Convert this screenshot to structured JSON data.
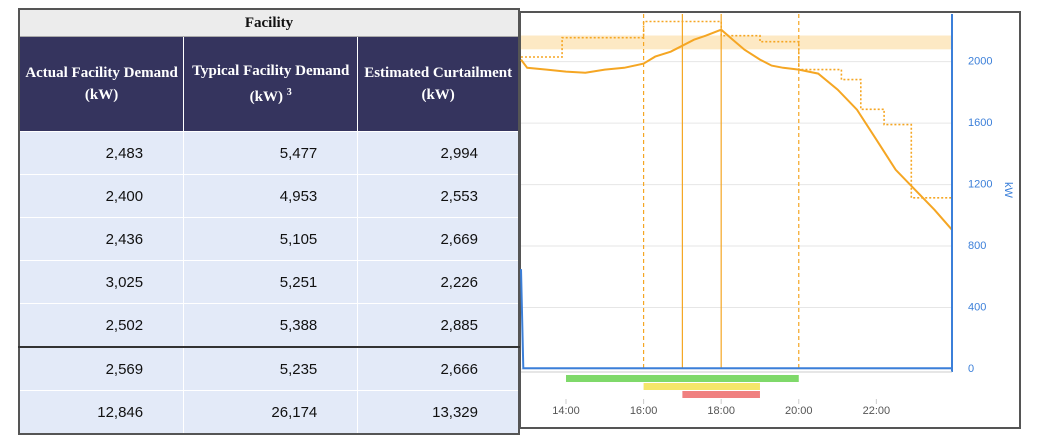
{
  "table": {
    "title": "Facility",
    "headers": [
      "Actual Facility Demand (kW)",
      "Typical Facility Demand (kW)",
      "Estimated Curtailment (kW)"
    ],
    "header_note": "3",
    "rows": [
      [
        "2,483",
        "5,477",
        "2,994"
      ],
      [
        "2,400",
        "4,953",
        "2,553"
      ],
      [
        "2,436",
        "5,105",
        "2,669"
      ],
      [
        "3,025",
        "5,251",
        "2,226"
      ],
      [
        "2,502",
        "5,388",
        "2,885"
      ],
      [
        "2,569",
        "5,235",
        "2,666"
      ],
      [
        "12,846",
        "26,174",
        "13,329"
      ]
    ]
  },
  "chart_data": {
    "type": "line",
    "ylabel": "kW",
    "y_axis_position": "right",
    "xlim": [
      12.84,
      23.95
    ],
    "ylim": [
      0,
      2310
    ],
    "xticks": [
      {
        "value": 14,
        "label": "14:00"
      },
      {
        "value": 16,
        "label": "16:00"
      },
      {
        "value": 18,
        "label": "18:00"
      },
      {
        "value": 20,
        "label": "20:00"
      },
      {
        "value": 22,
        "label": "22:00"
      }
    ],
    "yticks": [
      0,
      400,
      800,
      1200,
      1600,
      2000
    ],
    "grid": true,
    "bands": [
      {
        "from": 2080,
        "to": 2170,
        "color": "#fde9c4"
      }
    ],
    "vlines": [
      {
        "x": 16,
        "style": "dashed",
        "color": "#f5a623"
      },
      {
        "x": 17,
        "style": "solid",
        "color": "#f5a623"
      },
      {
        "x": 18,
        "style": "solid",
        "color": "#f5a623"
      },
      {
        "x": 20,
        "style": "dashed",
        "color": "#f5a623"
      }
    ],
    "ranges": [
      {
        "start": 14,
        "end": 20,
        "color": "#7fd96a"
      },
      {
        "start": 16,
        "end": 19,
        "color": "#f5e66a"
      },
      {
        "start": 17,
        "end": 19,
        "color": "#f08080"
      }
    ],
    "series": [
      {
        "color": "#f5a623",
        "style": "dotted",
        "x": [
          12.84,
          13.9,
          13.9,
          16,
          16,
          18,
          18,
          19,
          19,
          20,
          20,
          21.1,
          21.1,
          21.6,
          21.6,
          22.2,
          22.2,
          22.9,
          22.9,
          23.95
        ],
        "values": [
          2030,
          2030,
          2156,
          2156,
          2261,
          2261,
          2169,
          2169,
          2130,
          2130,
          1948,
          1948,
          1883,
          1883,
          1690,
          1690,
          1590,
          1590,
          1114,
          1114
        ]
      },
      {
        "color": "#f5a623",
        "style": "solid",
        "x": [
          12.84,
          13.0,
          13.5,
          14.0,
          14.5,
          15.0,
          15.5,
          16.0,
          16.3,
          16.7,
          17.0,
          17.3,
          17.6,
          18.0,
          18.3,
          18.6,
          19.0,
          19.3,
          19.6,
          20.0,
          20.5,
          21.0,
          21.5,
          22.0,
          22.5,
          23.0,
          23.5,
          23.95
        ],
        "values": [
          2013,
          1960,
          1948,
          1935,
          1928,
          1948,
          1960,
          1987,
          2033,
          2065,
          2104,
          2143,
          2169,
          2208,
          2143,
          2078,
          2013,
          1974,
          1960,
          1948,
          1922,
          1818,
          1687,
          1492,
          1296,
          1166,
          1036,
          906
        ]
      },
      {
        "color": "#3b7fd9",
        "style": "solid",
        "x": [
          12.84,
          12.9,
          23.95
        ],
        "values": [
          650,
          5,
          5
        ]
      }
    ]
  }
}
